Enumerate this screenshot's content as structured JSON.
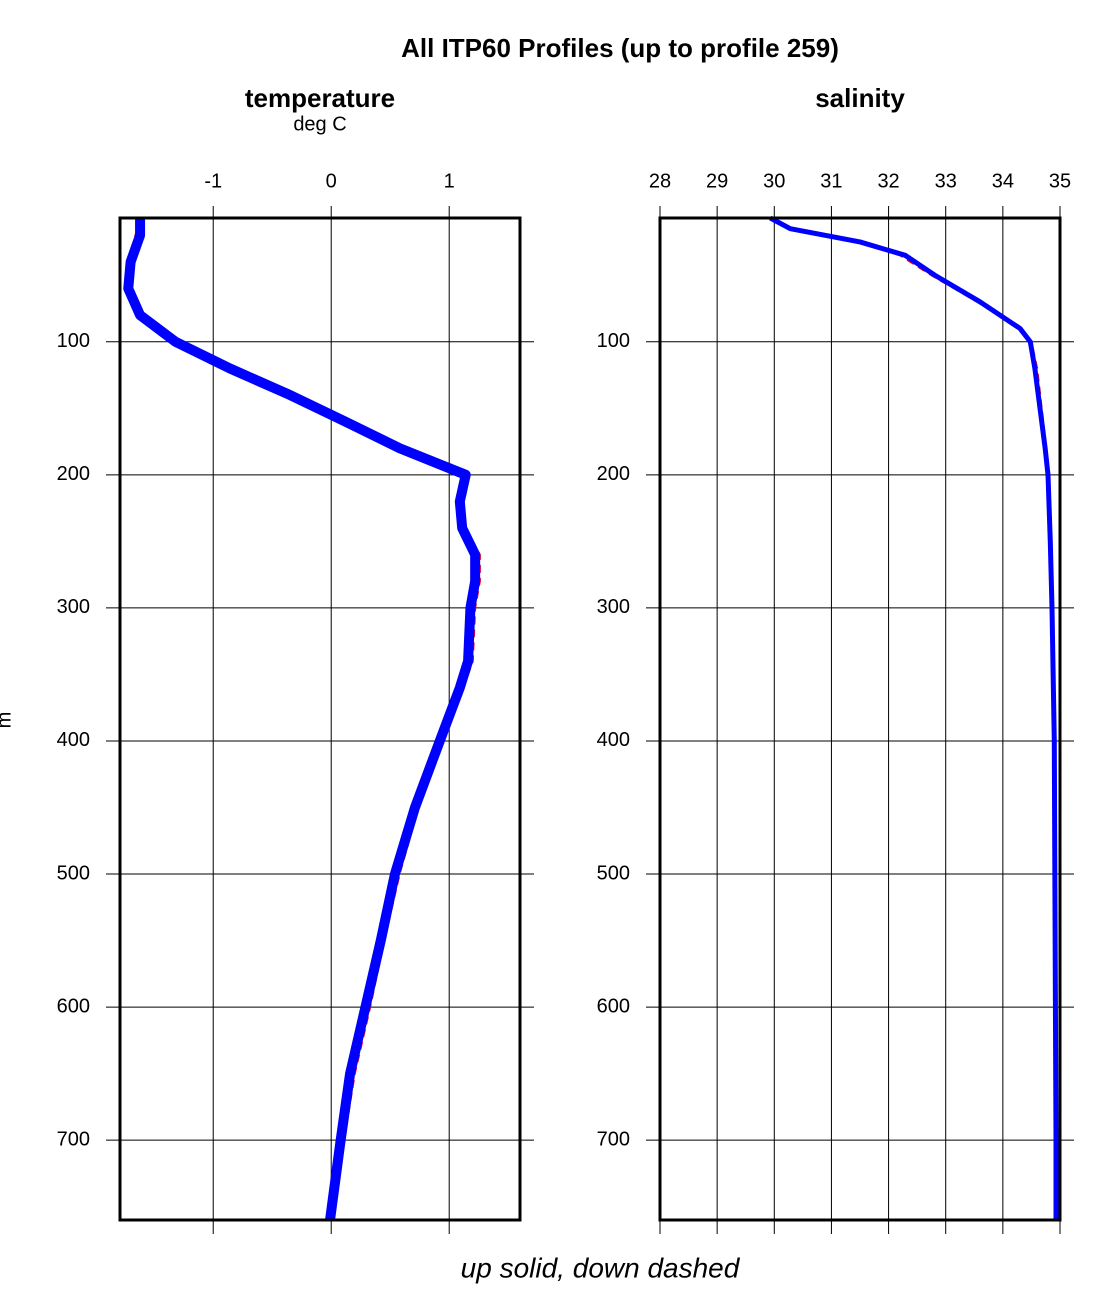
{
  "title": "All ITP60 Profiles (up to profile 259)",
  "caption": "up solid, down dashed",
  "y_label": "m",
  "chart_data": [
    {
      "type": "line",
      "title": "temperature",
      "subtitle": "deg C",
      "depth": [
        7,
        20,
        40,
        60,
        80,
        100,
        120,
        140,
        160,
        180,
        200,
        220,
        240,
        260,
        280,
        300,
        340,
        360,
        400,
        450,
        500,
        550,
        600,
        650,
        700,
        760
      ],
      "xlim": [
        -1.79,
        1.6
      ],
      "xticks": [
        -1,
        0,
        1
      ],
      "ylim": [
        760,
        7
      ],
      "yticks": [
        100,
        200,
        300,
        400,
        500,
        600,
        700
      ],
      "series": [
        {
          "color": "#ff0000",
          "dash": true,
          "width": 2,
          "values": [
            -1.6,
            -1.66,
            -1.68,
            -1.7,
            -1.6,
            -1.3,
            -0.82,
            -0.3,
            0.16,
            0.62,
            1.16,
            1.12,
            1.14,
            1.26,
            1.26,
            1.22,
            1.2,
            1.12,
            0.95,
            0.74,
            0.58,
            0.45,
            0.33,
            0.2,
            0.11,
            0.02
          ]
        },
        {
          "color": "#0000ff",
          "dash": false,
          "width": 10,
          "values": [
            -1.62,
            -1.62,
            -1.7,
            -1.72,
            -1.62,
            -1.32,
            -0.86,
            -0.35,
            0.12,
            0.58,
            1.14,
            1.09,
            1.11,
            1.22,
            1.22,
            1.18,
            1.16,
            1.09,
            0.92,
            0.71,
            0.54,
            0.42,
            0.29,
            0.16,
            0.08,
            -0.01
          ]
        }
      ]
    },
    {
      "type": "line",
      "title": "salinity",
      "depth": [
        7,
        15,
        25,
        35,
        50,
        70,
        90,
        100,
        120,
        150,
        180,
        200,
        250,
        300,
        400,
        500,
        600,
        700,
        760
      ],
      "xlim": [
        28,
        35
      ],
      "xticks": [
        28,
        29,
        30,
        31,
        32,
        33,
        34,
        35
      ],
      "ylim": [
        760,
        7
      ],
      "yticks": [
        100,
        200,
        300,
        400,
        500,
        600,
        700
      ],
      "series": [
        {
          "color": "#ff0000",
          "dash": true,
          "width": 2,
          "values": [
            29.95,
            30.3,
            31.45,
            32.2,
            32.75,
            33.55,
            34.28,
            34.5,
            34.6,
            34.68,
            34.76,
            34.8,
            34.84,
            34.87,
            34.9,
            34.91,
            34.92,
            34.93,
            34.93
          ]
        },
        {
          "color": "#0000ff",
          "dash": false,
          "width": 5,
          "values": [
            29.93,
            30.28,
            31.5,
            32.29,
            32.81,
            33.6,
            34.3,
            34.48,
            34.56,
            34.65,
            34.74,
            34.79,
            34.83,
            34.86,
            34.9,
            34.91,
            34.92,
            34.93,
            34.93
          ]
        }
      ]
    }
  ]
}
